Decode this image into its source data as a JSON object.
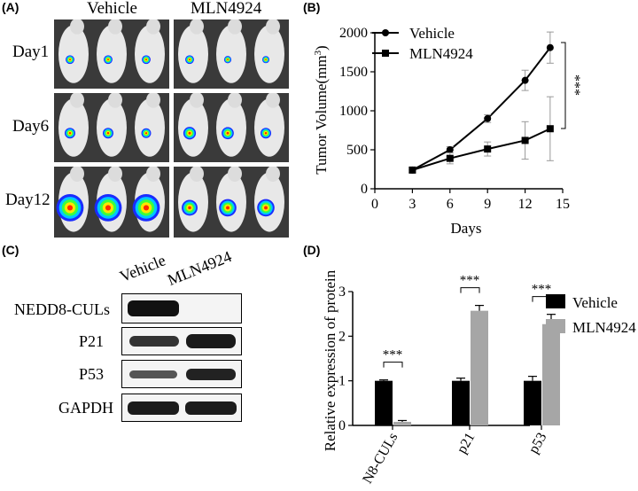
{
  "panels": {
    "a": "(A)",
    "b": "(B)",
    "c": "(C)",
    "d": "(D)"
  },
  "panel_a": {
    "columns": [
      "Vehicle",
      "MLN4924"
    ],
    "rows": [
      "Day1",
      "Day6",
      "Day12"
    ]
  },
  "panel_c": {
    "columns": [
      "Vehicle",
      "MLN4924"
    ],
    "rows": [
      "NEDD8-CULs",
      "P21",
      "P53",
      "GAPDH"
    ]
  },
  "chart_data": [
    {
      "type": "line",
      "xlabel": "Days",
      "ylabel": "Tumor Volume(mm",
      "ylabel_sup": "3",
      "ylabel_close": ")",
      "xlim": [
        0,
        15
      ],
      "ylim": [
        0,
        2000
      ],
      "xticks": [
        0,
        3,
        6,
        9,
        12,
        15
      ],
      "yticks": [
        0,
        500,
        1000,
        1500,
        2000
      ],
      "legend_position": "top-left",
      "significance": "***",
      "series": [
        {
          "name": "Vehicle",
          "marker": "circle",
          "x": [
            3,
            6,
            9,
            12,
            14
          ],
          "y": [
            240,
            500,
            900,
            1390,
            1810
          ],
          "err": [
            30,
            40,
            50,
            130,
            200
          ]
        },
        {
          "name": "MLN4924",
          "marker": "square",
          "x": [
            3,
            6,
            9,
            12,
            14
          ],
          "y": [
            240,
            390,
            510,
            620,
            770
          ],
          "err": [
            30,
            70,
            90,
            240,
            410
          ]
        }
      ]
    },
    {
      "type": "bar",
      "ylabel": "Relative expression of protein",
      "ylim": [
        0,
        3
      ],
      "yticks": [
        0,
        1,
        2,
        3
      ],
      "categories": [
        "N8-CULs",
        "p21",
        "p53"
      ],
      "legend_position": "top-right",
      "significance": [
        "***",
        "***",
        "***"
      ],
      "series": [
        {
          "name": "Vehicle",
          "color": "#000000",
          "values": [
            1.0,
            1.0,
            1.0
          ],
          "err": [
            0.02,
            0.06,
            0.1
          ]
        },
        {
          "name": "MLN4924",
          "color": "#a6a6a6",
          "values": [
            0.08,
            2.57,
            2.27
          ],
          "err": [
            0.03,
            0.12,
            0.22
          ]
        }
      ]
    }
  ]
}
